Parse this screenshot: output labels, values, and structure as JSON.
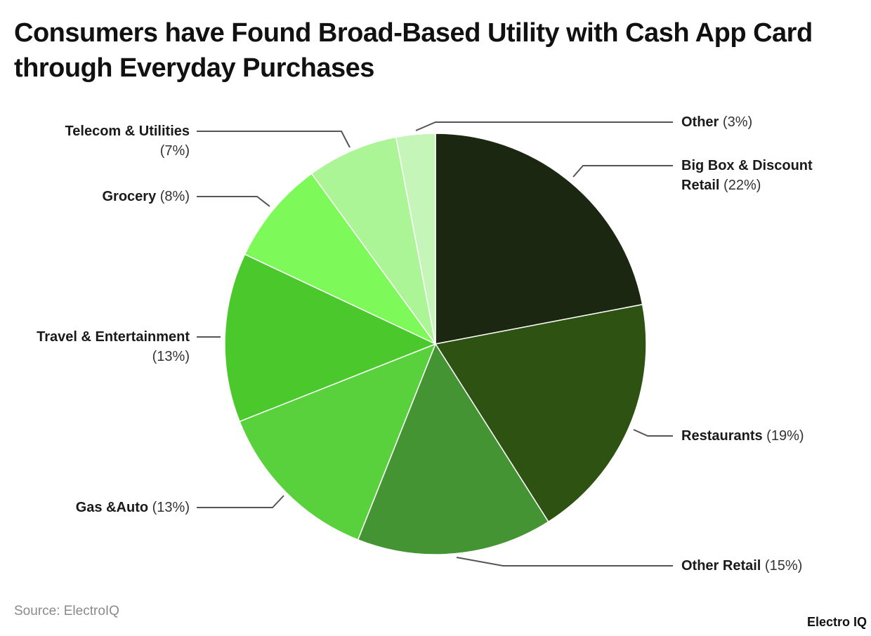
{
  "title": "Consumers have Found Broad-Based Utility with Cash App Card through Everyday Purchases",
  "source": "Source: ElectroIQ",
  "brand": "Electro IQ",
  "labels": {
    "other": {
      "name": "Other",
      "pct": "(3%)"
    },
    "bigbox": {
      "name_line1": "Big Box & Discount",
      "name_line2": "Retail",
      "pct": "(22%)"
    },
    "restaurants": {
      "name": "Restaurants",
      "pct": "(19%)"
    },
    "otherretail": {
      "name": "Other Retail",
      "pct": "(15%)"
    },
    "gasauto": {
      "name": "Gas &Auto",
      "pct": "(13%)"
    },
    "travel": {
      "name": "Travel & Entertainment",
      "pct": "(13%)"
    },
    "grocery": {
      "name": "Grocery",
      "pct": "(8%)"
    },
    "telecom": {
      "name": "Telecom & Utilities",
      "pct": "(7%)"
    }
  },
  "chart_data": {
    "type": "pie",
    "title": "Consumers have Found Broad-Based Utility with Cash App Card through Everyday Purchases",
    "start_angle": "12 o'clock, clockwise",
    "categories": [
      "Big Box & Discount Retail",
      "Restaurants",
      "Other Retail",
      "Gas &Auto",
      "Travel & Entertainment",
      "Grocery",
      "Telecom & Utilities",
      "Other"
    ],
    "values": [
      22,
      19,
      15,
      13,
      13,
      8,
      7,
      3
    ],
    "unit": "%",
    "colors": [
      "#1c2712",
      "#2d5212",
      "#459433",
      "#58d13c",
      "#4ac82c",
      "#7dfa5a",
      "#abf596",
      "#c5f5b9"
    ],
    "legend": "none (callout labels)",
    "source": "Source: ElectroIQ"
  }
}
